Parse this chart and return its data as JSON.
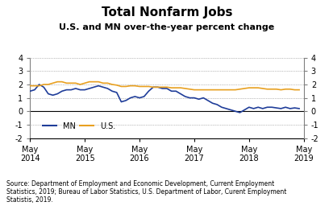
{
  "title": "Total Nonfarm Jobs",
  "subtitle": "U.S. and MN over-the-year percent change",
  "source": "Source: Department of Employment and Economic Development, Current Employment\nStatistics, 2019; Bureau of Labor Statistics, U.S. Department of Labor, Curent Employment\nStatistis, 2019.",
  "ylim": [
    -2,
    4
  ],
  "yticks": [
    -2,
    -1,
    0,
    1,
    2,
    3,
    4
  ],
  "mn_color": "#1f3d99",
  "us_color": "#e8a020",
  "mn_label": "MN",
  "us_label": "U.S.",
  "mn_data": [
    1.5,
    1.6,
    2.0,
    1.8,
    1.3,
    1.2,
    1.3,
    1.5,
    1.6,
    1.6,
    1.7,
    1.6,
    1.6,
    1.7,
    1.8,
    1.9,
    1.8,
    1.7,
    1.5,
    1.4,
    0.7,
    0.8,
    1.0,
    1.1,
    1.0,
    1.1,
    1.5,
    1.8,
    1.8,
    1.7,
    1.7,
    1.5,
    1.5,
    1.3,
    1.1,
    1.0,
    1.0,
    0.9,
    1.0,
    0.8,
    0.6,
    0.5,
    0.3,
    0.2,
    0.1,
    0.0,
    -0.1,
    0.1,
    0.3,
    0.2,
    0.3,
    0.2,
    0.3,
    0.3,
    0.25,
    0.2,
    0.3,
    0.2,
    0.25,
    0.2
  ],
  "us_data": [
    1.9,
    1.9,
    1.9,
    2.0,
    2.0,
    2.1,
    2.2,
    2.2,
    2.1,
    2.1,
    2.1,
    2.0,
    2.1,
    2.2,
    2.2,
    2.2,
    2.1,
    2.1,
    2.0,
    1.95,
    1.85,
    1.85,
    1.9,
    1.9,
    1.85,
    1.85,
    1.85,
    1.8,
    1.8,
    1.8,
    1.8,
    1.75,
    1.75,
    1.75,
    1.7,
    1.65,
    1.6,
    1.6,
    1.6,
    1.6,
    1.6,
    1.6,
    1.6,
    1.6,
    1.6,
    1.6,
    1.65,
    1.7,
    1.75,
    1.75,
    1.75,
    1.7,
    1.65,
    1.65,
    1.65,
    1.6,
    1.65,
    1.65,
    1.6,
    1.6
  ],
  "x_tick_positions": [
    0,
    12,
    24,
    36,
    48,
    60
  ],
  "x_tick_labels": [
    "May\n2014",
    "May\n2015",
    "May\n2016",
    "May\n2017",
    "May\n2018",
    "May\n2019"
  ],
  "n_points": 60
}
